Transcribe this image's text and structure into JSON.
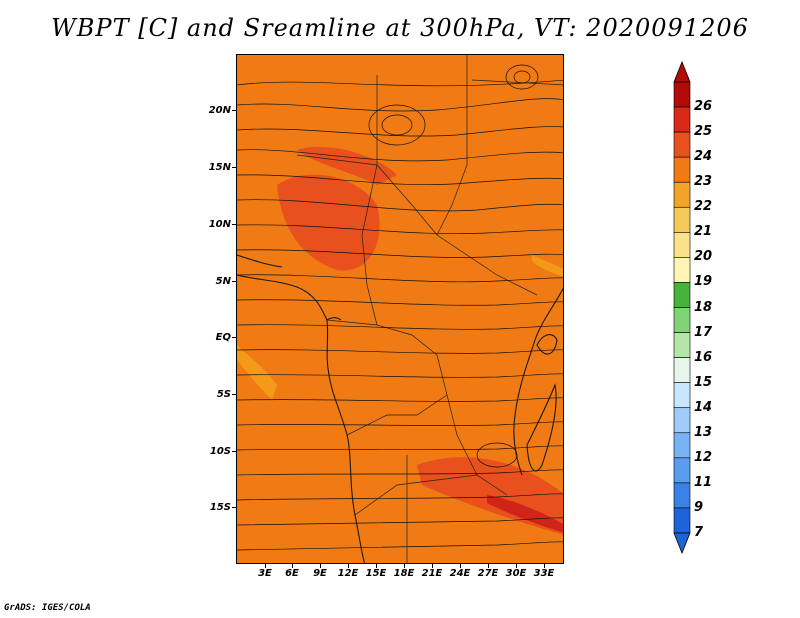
{
  "title": "WBPT [C] and Sreamline at 300hPa, VT: 2020091206",
  "credit": "GrADS: IGES/COLA",
  "map": {
    "field": "WBPT [C]",
    "overlay": "Sreamline",
    "level": "300hPa",
    "valid_time": "2020091206",
    "base_color": "#f07a14",
    "warm_color": "#e8501e",
    "hot_color": "#d02418",
    "cool_color": "#f39a18",
    "coast_color": "#1a1a1a",
    "stream_color": "#111111"
  },
  "y_axis": [
    "20N",
    "15N",
    "10N",
    "5N",
    "EQ",
    "5S",
    "10S",
    "15S"
  ],
  "x_axis": [
    "3E",
    "6E",
    "9E",
    "12E",
    "15E",
    "18E",
    "21E",
    "24E",
    "27E",
    "30E",
    "33E"
  ],
  "colorbar": {
    "labels": [
      "7",
      "9",
      "11",
      "12",
      "13",
      "14",
      "15",
      "16",
      "17",
      "18",
      "19",
      "20",
      "21",
      "22",
      "23",
      "24",
      "25",
      "26"
    ],
    "colors": [
      "#1e64d8",
      "#3c82e6",
      "#5a9cee",
      "#78b4f4",
      "#a0ccf8",
      "#c8e6fc",
      "#e6f6ea",
      "#b4e6a8",
      "#82d278",
      "#46b43c",
      "#fff6b4",
      "#fae28c",
      "#f5c85a",
      "#f3a428",
      "#f07a14",
      "#e8501e",
      "#d82a16",
      "#b40a0a"
    ]
  }
}
